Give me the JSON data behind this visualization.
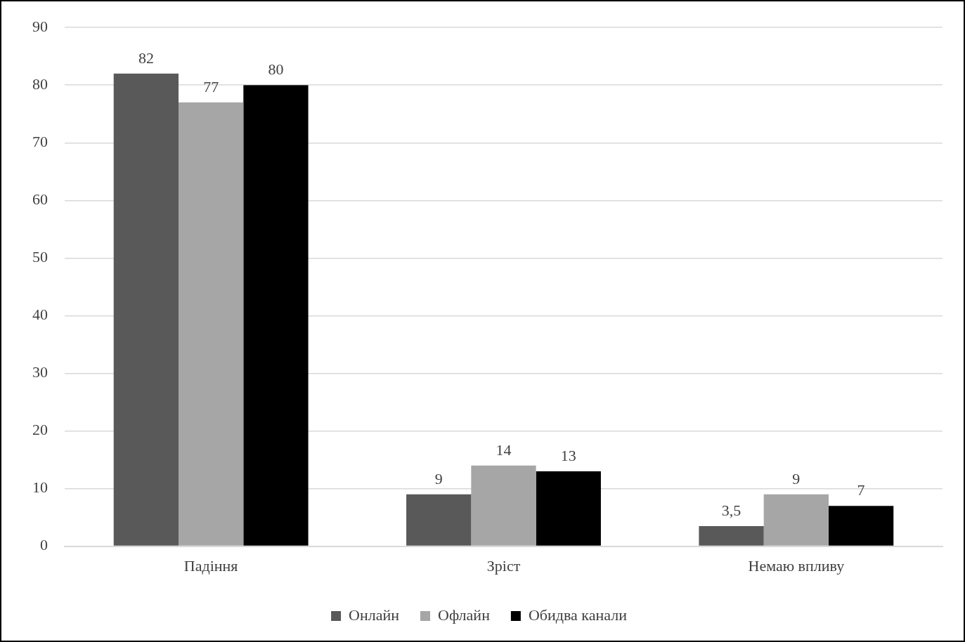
{
  "chart_data": {
    "type": "bar",
    "categories": [
      "Падіння",
      "Зріст",
      "Немаю впливу"
    ],
    "series": [
      {
        "name": "Онлайн",
        "color": "#595959",
        "values": [
          82,
          9,
          3.5
        ],
        "value_labels": [
          "82",
          "9",
          "3,5"
        ]
      },
      {
        "name": "Офлайн",
        "color": "#a6a6a6",
        "values": [
          77,
          14,
          9
        ],
        "value_labels": [
          "77",
          "14",
          "9"
        ]
      },
      {
        "name": "Обидва канали",
        "color": "#000000",
        "values": [
          80,
          13,
          7
        ],
        "value_labels": [
          "80",
          "13",
          "7"
        ]
      }
    ],
    "ylim": [
      0,
      90
    ],
    "yticks": [
      0,
      10,
      20,
      30,
      40,
      50,
      60,
      70,
      80,
      90
    ],
    "grid": "y",
    "legend": "bottom"
  }
}
